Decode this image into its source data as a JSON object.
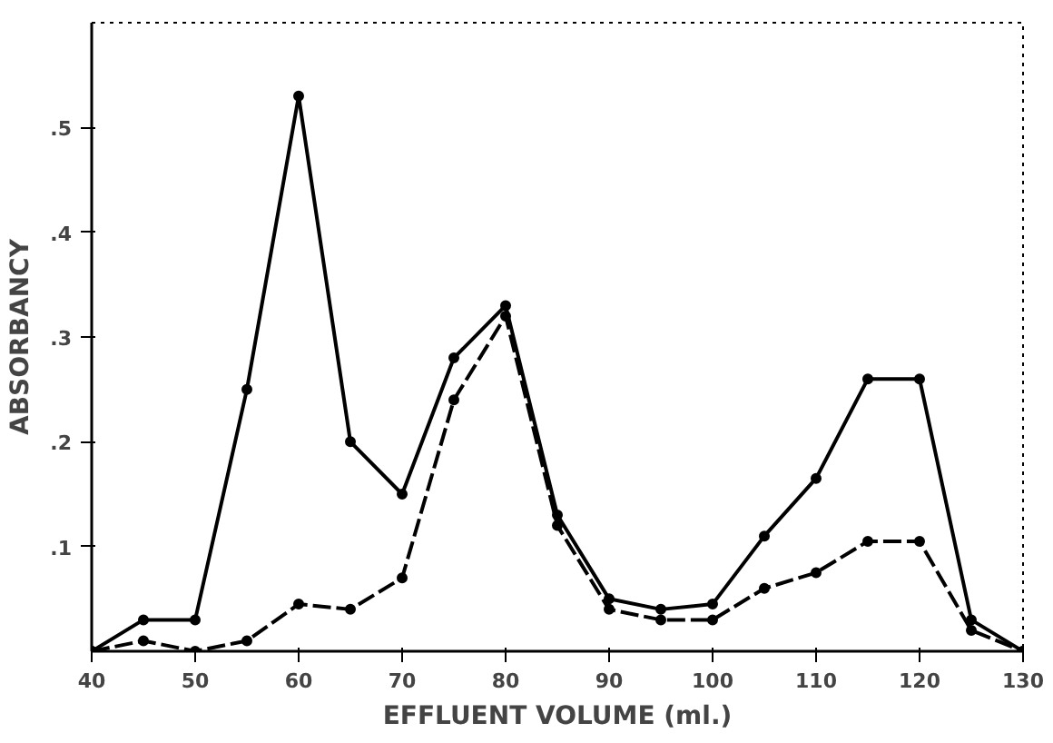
{
  "chart_data": {
    "type": "line",
    "xlabel": "EFFLUENT VOLUME (ml.)",
    "ylabel": "ABSORBANCY",
    "x": [
      40,
      45,
      50,
      55,
      60,
      65,
      70,
      75,
      80,
      85,
      90,
      95,
      100,
      105,
      110,
      115,
      120,
      125,
      130
    ],
    "series": [
      {
        "color": "#000000",
        "marker": "circle",
        "line_style": "solid",
        "values": [
          0,
          0.03,
          0.03,
          0.25,
          0.53,
          0.2,
          0.15,
          0.28,
          0.33,
          0.13,
          0.05,
          0.04,
          0.045,
          0.11,
          0.165,
          0.26,
          0.26,
          0.03,
          0
        ]
      },
      {
        "color": "#000000",
        "marker": "circle",
        "line_style": "dashed",
        "values": [
          0,
          0.01,
          0,
          0.01,
          0.045,
          0.04,
          0.07,
          0.24,
          0.32,
          0.12,
          0.04,
          0.03,
          0.03,
          0.06,
          0.075,
          0.105,
          0.105,
          0.02,
          0
        ]
      }
    ],
    "xlim": [
      40,
      130
    ],
    "ylim": [
      0,
      0.6
    ],
    "xticks": [
      40,
      50,
      60,
      70,
      80,
      90,
      100,
      110,
      120,
      130
    ],
    "yticks": [
      {
        "value": 0.1,
        "label": ".1"
      },
      {
        "value": 0.2,
        "label": ".2"
      },
      {
        "value": 0.3,
        "label": ".3"
      },
      {
        "value": 0.4,
        "label": ".4"
      },
      {
        "value": 0.5,
        "label": ".5"
      }
    ],
    "grid": false
  }
}
